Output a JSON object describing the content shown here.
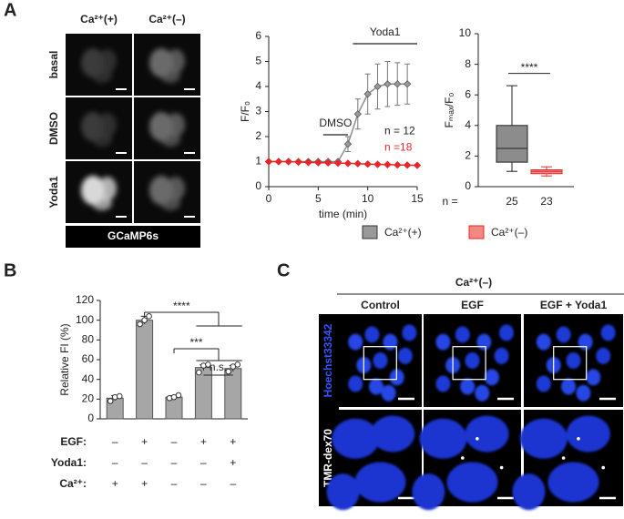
{
  "panel_labels": [
    "A",
    "B",
    "C"
  ],
  "images_a": {
    "columns": [
      "Ca²⁺(+)",
      "Ca²⁺(–)"
    ],
    "rows": [
      "basal",
      "DMSO",
      "Yoda1"
    ],
    "footer": "GCaMP6s"
  },
  "images_c": {
    "header": "Ca²⁺(–)",
    "columns": [
      "Control",
      "EGF",
      "EGF + Yoda1"
    ],
    "rows": [
      "Hoechst33342",
      "TMR-dex70"
    ]
  },
  "chart_data": [
    {
      "type": "line",
      "xlabel": "time (min)",
      "ylabel": "F/F₀",
      "xlim": [
        0,
        15
      ],
      "xticks": [
        0,
        5,
        10,
        15
      ],
      "ylim": [
        0,
        6
      ],
      "yticks": [
        0,
        1,
        2,
        3,
        4,
        5,
        6
      ],
      "annotations": [
        {
          "text": "DMSO",
          "span": [
            5.5,
            8
          ]
        },
        {
          "text": "Yoda1",
          "span": [
            8.5,
            15
          ]
        }
      ],
      "series": [
        {
          "name": "Ca²⁺(+)",
          "color": "#8c8c8c",
          "n_label": "n = 12",
          "x": [
            0,
            1,
            2,
            3,
            4,
            5,
            6,
            7,
            8,
            9,
            10,
            11,
            12,
            13,
            14
          ],
          "values": [
            1,
            1,
            1,
            1,
            1,
            1,
            1,
            1,
            1.7,
            2.9,
            3.7,
            4.0,
            4.1,
            4.1,
            4.1
          ],
          "errors": [
            0,
            0,
            0,
            0,
            0,
            0,
            0,
            0,
            0.3,
            0.6,
            0.8,
            0.9,
            0.9,
            0.85,
            0.8
          ]
        },
        {
          "name": "Ca²⁺(–)",
          "color": "#e8262a",
          "n_label": "n =18",
          "x": [
            0,
            1,
            2,
            3,
            4,
            5,
            6,
            7,
            8,
            9,
            10,
            11,
            12,
            13,
            14,
            15
          ],
          "values": [
            1,
            1,
            1,
            0.98,
            0.97,
            0.96,
            0.95,
            0.94,
            0.93,
            0.92,
            0.9,
            0.89,
            0.88,
            0.87,
            0.86,
            0.85
          ]
        }
      ]
    },
    {
      "type": "box",
      "ylabel": "Fₘₐₓ/F₀",
      "ylim": [
        0,
        10
      ],
      "yticks": [
        0,
        2,
        4,
        6,
        8,
        10
      ],
      "n_label": "n =",
      "significance": "****",
      "series": [
        {
          "color": "#8c8c8c",
          "n": 25,
          "min": 1.0,
          "q1": 1.6,
          "median": 2.5,
          "q3": 4.0,
          "max": 6.6
        },
        {
          "color": "#f08a80",
          "n": 23,
          "min": 0.7,
          "q1": 0.85,
          "median": 1.0,
          "q3": 1.1,
          "max": 1.3
        }
      ]
    },
    {
      "type": "bar",
      "ylabel": "Relative FI (%)",
      "ylim": [
        0,
        120
      ],
      "yticks": [
        0,
        20,
        40,
        60,
        80,
        100,
        120
      ],
      "color": "#a6a6a6",
      "values": [
        21,
        100,
        22,
        52,
        51
      ],
      "errors": [
        2.5,
        4,
        1.5,
        3,
        3
      ],
      "points": [
        [
          18,
          22,
          23
        ],
        [
          96,
          100,
          104
        ],
        [
          21,
          22,
          24
        ],
        [
          47,
          54,
          55
        ],
        [
          48,
          53,
          55
        ]
      ],
      "significance": [
        "****",
        "***",
        "n.s."
      ],
      "conditions": [
        {
          "label": "EGF:",
          "signs": [
            "–",
            "+",
            "–",
            "+",
            "+"
          ]
        },
        {
          "label": "Yoda1:",
          "signs": [
            "–",
            "–",
            "–",
            "–",
            "+"
          ]
        },
        {
          "label": "Ca²⁺:",
          "signs": [
            "+",
            "+",
            "–",
            "–",
            "–"
          ]
        }
      ]
    }
  ]
}
